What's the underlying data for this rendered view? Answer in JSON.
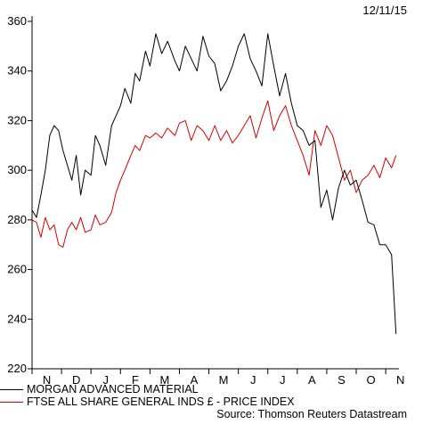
{
  "date": "12/11/15",
  "source": "Source: Thomson Reuters Datastream",
  "colors": {
    "morgan": "#000000",
    "ftse": "#d40000"
  },
  "chart_data": {
    "type": "line",
    "title": "",
    "xlabel": "",
    "ylabel": "",
    "ylim": [
      220,
      360
    ],
    "yticks": [
      220,
      240,
      260,
      280,
      300,
      320,
      340,
      360
    ],
    "month_labels": [
      "N",
      "D",
      "J",
      "F",
      "M",
      "A",
      "M",
      "J",
      "J",
      "A",
      "S",
      "O",
      "N"
    ],
    "x_unit": "months from start of November 2014",
    "grid": false,
    "legend_position": "bottom",
    "series": [
      {
        "name": "MORGAN ADVANCED MATERIAL",
        "color": "#000000",
        "x": [
          0,
          0.15,
          0.3,
          0.45,
          0.6,
          0.75,
          0.9,
          1.05,
          1.2,
          1.35,
          1.5,
          1.65,
          1.8,
          2.0,
          2.15,
          2.3,
          2.5,
          2.7,
          2.85,
          3.0,
          3.15,
          3.35,
          3.5,
          3.65,
          3.85,
          4.0,
          4.2,
          4.4,
          4.6,
          4.85,
          5.0,
          5.2,
          5.4,
          5.6,
          5.8,
          6.0,
          6.2,
          6.4,
          6.6,
          6.8,
          7.0,
          7.2,
          7.4,
          7.6,
          7.8,
          8.0,
          8.2,
          8.4,
          8.6,
          8.8,
          9.0,
          9.2,
          9.4,
          9.6,
          9.8,
          10.0,
          10.2,
          10.4,
          10.6,
          10.8,
          11.0,
          11.2,
          11.4,
          11.6,
          11.8,
          12.0,
          12.2,
          12.35
        ],
        "y": [
          284,
          281,
          290,
          300,
          314,
          318,
          316,
          308,
          302,
          296,
          306,
          290,
          300,
          298,
          314,
          310,
          302,
          318,
          322,
          326,
          333,
          327,
          339,
          336,
          348,
          342,
          355,
          347,
          352,
          344,
          340,
          350,
          345,
          340,
          354,
          346,
          343,
          332,
          336,
          342,
          350,
          355,
          345,
          340,
          334,
          355,
          342,
          330,
          339,
          327,
          318,
          316,
          310,
          312,
          285,
          292,
          280,
          293,
          300,
          294,
          296,
          288,
          279,
          278,
          270,
          270,
          266,
          234
        ]
      },
      {
        "name": "FTSE ALL SHARE GENERAL INDS £ - PRICE INDEX",
        "color": "#d40000",
        "x": [
          0,
          0.15,
          0.3,
          0.45,
          0.6,
          0.75,
          0.9,
          1.05,
          1.2,
          1.35,
          1.5,
          1.65,
          1.8,
          2.0,
          2.15,
          2.3,
          2.5,
          2.7,
          2.85,
          3.0,
          3.15,
          3.35,
          3.5,
          3.65,
          3.85,
          4.0,
          4.2,
          4.4,
          4.6,
          4.85,
          5.0,
          5.2,
          5.4,
          5.6,
          5.8,
          6.0,
          6.2,
          6.4,
          6.6,
          6.8,
          7.0,
          7.2,
          7.4,
          7.6,
          7.8,
          8.0,
          8.2,
          8.4,
          8.6,
          8.8,
          9.0,
          9.2,
          9.4,
          9.6,
          9.8,
          10.0,
          10.2,
          10.4,
          10.6,
          10.8,
          11.0,
          11.2,
          11.4,
          11.6,
          11.8,
          12.0,
          12.2,
          12.35
        ],
        "y": [
          280,
          279,
          273,
          281,
          276,
          278,
          270,
          269,
          276,
          279,
          276,
          281,
          275,
          276,
          282,
          278,
          279,
          283,
          291,
          296,
          300,
          306,
          310,
          308,
          314,
          313,
          315,
          313,
          317,
          314,
          319,
          320,
          312,
          318,
          316,
          312,
          318,
          312,
          316,
          311,
          314,
          318,
          322,
          313,
          321,
          328,
          316,
          322,
          326,
          318,
          312,
          306,
          298,
          316,
          310,
          318,
          314,
          305,
          296,
          300,
          291,
          296,
          298,
          302,
          297,
          305,
          301,
          306
        ]
      }
    ]
  }
}
